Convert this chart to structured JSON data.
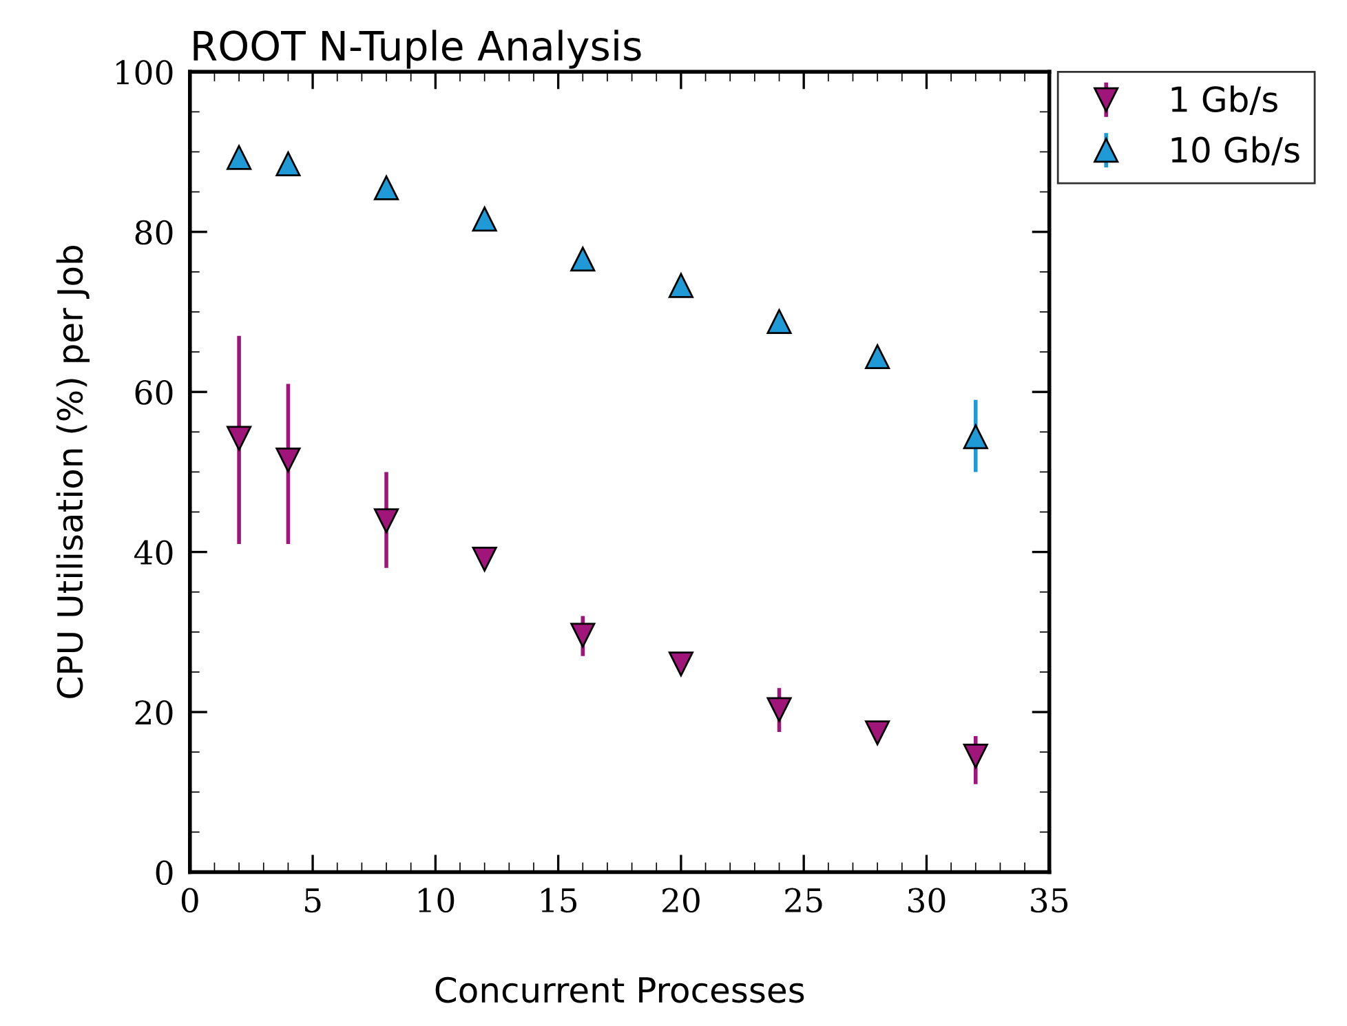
{
  "chart_data": {
    "type": "scatter",
    "title": "ROOT N-Tuple Analysis",
    "xlabel": "Concurrent Processes",
    "ylabel": "CPU Utilisation (%) per Job",
    "x": [
      2,
      4,
      8,
      12,
      16,
      20,
      24,
      28,
      32
    ],
    "series": [
      {
        "name": "1 Gb/s",
        "color": "#a0157a",
        "marker": "triangle_down",
        "values": [
          54.2,
          51.5,
          43.9,
          39.1,
          29.6,
          26,
          20.3,
          17.4,
          14.5
        ],
        "errors": [
          [
            41,
            67
          ],
          [
            41,
            61
          ],
          [
            38,
            50
          ],
          null,
          [
            27,
            32
          ],
          null,
          [
            17.5,
            23
          ],
          null,
          [
            11,
            17
          ]
        ]
      },
      {
        "name": "10 Gb/s",
        "color": "#1f9ad6",
        "marker": "triangle",
        "values": [
          89.3,
          88.5,
          85.5,
          81.6,
          76.6,
          73.3,
          68.8,
          64.4,
          54.4
        ],
        "errors": [
          null,
          null,
          null,
          null,
          null,
          null,
          null,
          null,
          [
            50,
            59
          ]
        ]
      }
    ],
    "xlim": [
      0,
      35
    ],
    "xticks": [
      0,
      5,
      10,
      15,
      20,
      25,
      30,
      35
    ],
    "ylim": [
      0,
      100
    ],
    "yticks": [
      0,
      20,
      40,
      60,
      80,
      100
    ],
    "grid": false,
    "legend": "top right outside"
  }
}
